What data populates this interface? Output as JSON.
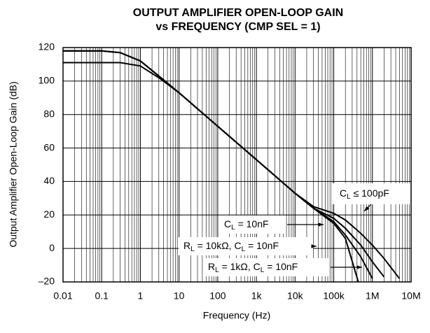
{
  "chart_data": {
    "type": "line",
    "title_lines": [
      "OUTPUT AMPLIFIER OPEN-LOOP GAIN",
      "vs FREQUENCY (CMP SEL = 1)"
    ],
    "xlabel": "Frequency (Hz)",
    "ylabel": "Output Amplifier Open-Loop Gain (dB)",
    "xscale": "log",
    "minor_grid": true,
    "grid": true,
    "color": "#000000",
    "xlim": [
      0.01,
      10000000
    ],
    "ylim": [
      -20,
      120
    ],
    "xticks": [
      0.01,
      0.1,
      1,
      10,
      100,
      {
        "value": 1000,
        "label": "1k"
      },
      {
        "value": 10000,
        "label": "10k"
      },
      {
        "value": 100000,
        "label": "100k"
      },
      {
        "value": 1000000,
        "label": "1M"
      },
      {
        "value": 10000000,
        "label": "10M"
      }
    ],
    "yticks": [
      {
        "value": -20,
        "label": "–20"
      },
      0,
      20,
      40,
      60,
      80,
      100,
      120
    ],
    "x": [
      0.01,
      0.1,
      0.3,
      1,
      3,
      10,
      100,
      1000,
      10000,
      30000,
      100000,
      200000,
      500000,
      1000000,
      2000000,
      5000000
    ],
    "series": [
      {
        "values": [
          118,
          118,
          117,
          112,
          103,
          93,
          73,
          53,
          33,
          25,
          21,
          17,
          9,
          2,
          -6,
          -18
        ]
      },
      {
        "values": [
          118,
          118,
          117,
          112,
          103,
          93,
          73,
          53,
          33,
          24,
          18,
          12,
          2,
          -8,
          -17,
          null
        ]
      },
      {
        "values": [
          118,
          118,
          117,
          112,
          103,
          93,
          73,
          53,
          33,
          24,
          16,
          8,
          -5,
          -18,
          null,
          null
        ]
      },
      {
        "values": [
          111,
          111,
          111,
          109,
          102,
          93,
          73,
          53,
          33,
          24,
          15,
          6,
          -25,
          null,
          null,
          null
        ]
      }
    ],
    "annotations": [
      {
        "parts": [
          "C",
          "L",
          " ≤ 100pF"
        ]
      },
      {
        "parts": [
          "C",
          "L",
          " = 10nF"
        ]
      },
      {
        "parts": [
          "R",
          "L",
          " = 10kΩ, C",
          "L",
          " = 10nF"
        ]
      },
      {
        "parts": [
          "R",
          "L",
          " = 1kΩ, C",
          "L",
          " = 10nF"
        ]
      }
    ]
  }
}
